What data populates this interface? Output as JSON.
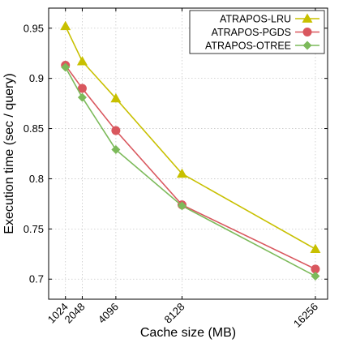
{
  "chart_data": {
    "type": "line",
    "title": "",
    "xlabel": "Cache size (MB)",
    "ylabel": "Execution time (sec / query)",
    "x": [
      1024,
      2048,
      4096,
      8128,
      16256
    ],
    "x_tick_labels": [
      "1024",
      "2048",
      "4096",
      "8128",
      "16256"
    ],
    "xlim": [
      0,
      17000
    ],
    "ylim": [
      0.68,
      0.97
    ],
    "y_ticks": [
      0.7,
      0.75,
      0.8,
      0.85,
      0.9,
      0.95
    ],
    "y_tick_labels": [
      "0.7",
      "0.75",
      "0.8",
      "0.85",
      "0.9",
      "0.95"
    ],
    "grid": true,
    "legend_position": "top-right",
    "series": [
      {
        "name": "ATRAPOS-LRU",
        "values": [
          0.952,
          0.917,
          0.88,
          0.805,
          0.73
        ],
        "color": "#c8c000",
        "marker": "triangle"
      },
      {
        "name": "ATRAPOS-PGDS",
        "values": [
          0.913,
          0.89,
          0.848,
          0.774,
          0.71
        ],
        "color": "#d9575e",
        "marker": "circle"
      },
      {
        "name": "ATRAPOS-OTREE",
        "values": [
          0.911,
          0.881,
          0.829,
          0.773,
          0.703
        ],
        "color": "#7cba5a",
        "marker": "diamond"
      }
    ]
  }
}
